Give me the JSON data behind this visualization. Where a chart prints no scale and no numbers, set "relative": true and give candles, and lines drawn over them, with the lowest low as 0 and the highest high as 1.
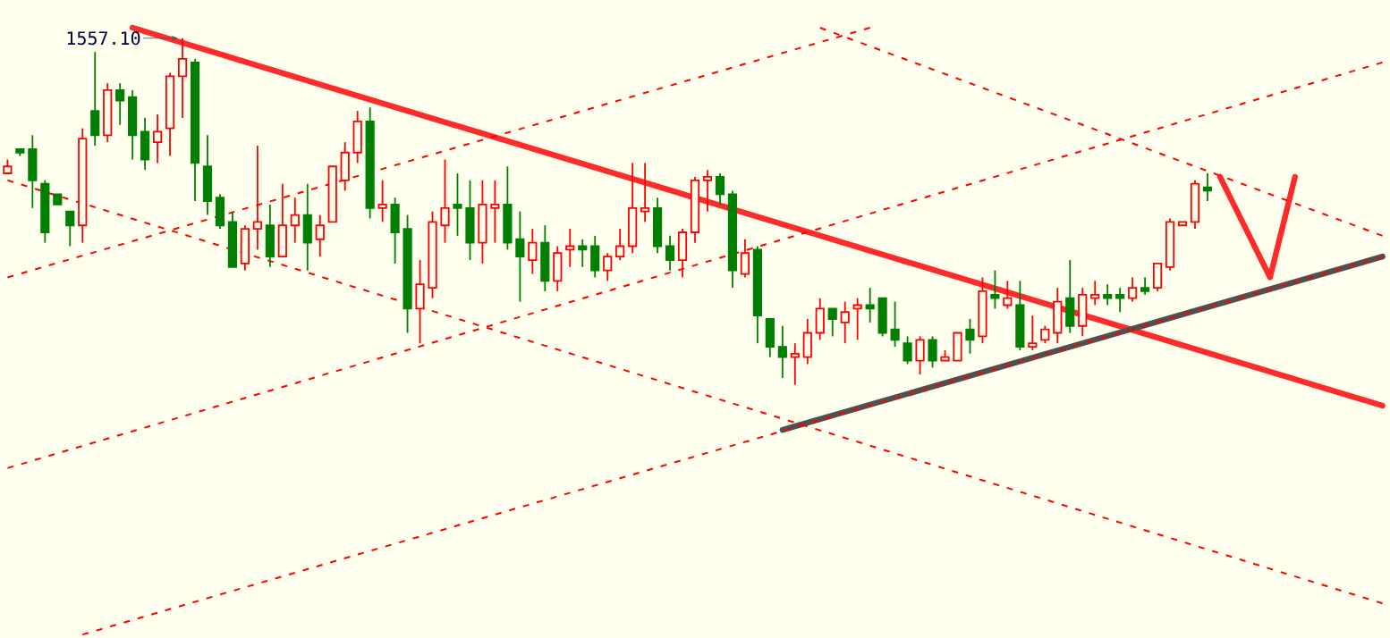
{
  "chart_data": {
    "type": "candlestick",
    "relative": true,
    "categories": [
      null,
      null,
      null,
      null,
      null,
      null,
      null,
      null,
      null,
      null,
      null,
      null,
      null,
      null,
      null,
      null,
      null,
      null,
      null,
      null,
      null,
      null,
      null,
      null,
      null,
      null,
      null,
      null,
      null,
      null,
      null,
      null,
      null,
      null,
      null,
      null,
      null,
      null,
      null,
      null,
      null,
      null,
      null,
      null,
      null,
      null,
      null,
      null,
      null,
      null,
      null,
      null,
      null,
      null,
      null,
      null,
      null,
      null,
      null,
      null,
      null,
      null,
      null,
      null,
      null,
      null,
      null,
      null,
      null,
      null,
      null,
      null,
      null,
      null,
      null,
      null,
      null,
      null,
      null,
      null,
      null,
      null,
      null,
      null,
      null,
      null,
      null,
      null,
      null,
      null,
      null,
      null,
      null,
      null,
      null,
      null,
      null,
      null,
      null,
      null,
      null,
      null,
      null,
      null,
      null,
      null,
      null,
      null,
      null,
      null,
      null
    ],
    "ohlc": [
      [
        0.61,
        0.65,
        0.61,
        0.63
      ],
      [
        0.68,
        0.68,
        0.66,
        0.67
      ],
      [
        0.68,
        0.72,
        0.51,
        0.59
      ],
      [
        0.58,
        0.59,
        0.41,
        0.44
      ],
      [
        0.55,
        0.55,
        0.52,
        0.52
      ],
      [
        0.5,
        0.5,
        0.4,
        0.46
      ],
      [
        0.46,
        0.74,
        0.41,
        0.71
      ],
      [
        0.79,
        0.96,
        0.69,
        0.72
      ],
      [
        0.72,
        0.87,
        0.7,
        0.85
      ],
      [
        0.85,
        0.87,
        0.75,
        0.82
      ],
      [
        0.83,
        0.85,
        0.65,
        0.72
      ],
      [
        0.73,
        0.77,
        0.62,
        0.65
      ],
      [
        0.7,
        0.78,
        0.64,
        0.73
      ],
      [
        0.74,
        0.9,
        0.66,
        0.89
      ],
      [
        0.89,
        1,
        0.77,
        0.94
      ],
      [
        0.93,
        0.94,
        0.53,
        0.64
      ],
      [
        0.63,
        0.72,
        0.49,
        0.53
      ],
      [
        0.54,
        0.55,
        0.45,
        0.46
      ],
      [
        0.47,
        0.5,
        0.34,
        0.34
      ],
      [
        0.35,
        0.46,
        0.33,
        0.45
      ],
      [
        0.45,
        0.69,
        0.39,
        0.47
      ],
      [
        0.46,
        0.52,
        0.34,
        0.37
      ],
      [
        0.37,
        0.58,
        0.37,
        0.46
      ],
      [
        0.46,
        0.54,
        0.41,
        0.49
      ],
      [
        0.49,
        0.58,
        0.33,
        0.41
      ],
      [
        0.42,
        0.49,
        0.37,
        0.46
      ],
      [
        0.47,
        0.63,
        0.47,
        0.63
      ],
      [
        0.59,
        0.7,
        0.56,
        0.67
      ],
      [
        0.67,
        0.79,
        0.64,
        0.76
      ],
      [
        0.76,
        0.8,
        0.48,
        0.51
      ],
      [
        0.51,
        0.59,
        0.47,
        0.52
      ],
      [
        0.52,
        0.54,
        0.35,
        0.44
      ],
      [
        0.45,
        0.49,
        0.15,
        0.22
      ],
      [
        0.22,
        0.36,
        0.12,
        0.29
      ],
      [
        0.28,
        0.5,
        0.25,
        0.47
      ],
      [
        0.46,
        0.65,
        0.41,
        0.51
      ],
      [
        0.52,
        0.61,
        0.43,
        0.51
      ],
      [
        0.51,
        0.59,
        0.36,
        0.41
      ],
      [
        0.41,
        0.59,
        0.35,
        0.52
      ],
      [
        0.51,
        0.59,
        0.41,
        0.52
      ],
      [
        0.52,
        0.63,
        0.39,
        0.41
      ],
      [
        0.42,
        0.5,
        0.24,
        0.37
      ],
      [
        0.36,
        0.45,
        0.32,
        0.41
      ],
      [
        0.41,
        0.46,
        0.27,
        0.3
      ],
      [
        0.3,
        0.4,
        0.27,
        0.38
      ],
      [
        0.39,
        0.45,
        0.34,
        0.4
      ],
      [
        0.4,
        0.42,
        0.34,
        0.39
      ],
      [
        0.4,
        0.43,
        0.31,
        0.33
      ],
      [
        0.33,
        0.38,
        0.3,
        0.37
      ],
      [
        0.37,
        0.45,
        0.36,
        0.4
      ],
      [
        0.4,
        0.64,
        0.38,
        0.51
      ],
      [
        0.5,
        0.64,
        0.47,
        0.51
      ],
      [
        0.51,
        0.54,
        0.38,
        0.4
      ],
      [
        0.4,
        0.43,
        0.33,
        0.36
      ],
      [
        0.36,
        0.45,
        0.31,
        0.44
      ],
      [
        0.44,
        0.6,
        0.41,
        0.59
      ],
      [
        0.59,
        0.62,
        0.5,
        0.6
      ],
      [
        0.6,
        0.61,
        0.52,
        0.55
      ],
      [
        0.55,
        0.56,
        0.28,
        0.33
      ],
      [
        0.32,
        0.42,
        0.31,
        0.38
      ],
      [
        0.39,
        0.4,
        0.12,
        0.2
      ],
      [
        0.19,
        0.19,
        0.08,
        0.11
      ],
      [
        0.11,
        0.17,
        0.02,
        0.08
      ],
      [
        0.08,
        0.12,
        0,
        0.09
      ],
      [
        0.08,
        0.19,
        0.06,
        0.15
      ],
      [
        0.15,
        0.25,
        0.13,
        0.22
      ],
      [
        0.22,
        0.22,
        0.14,
        0.19
      ],
      [
        0.18,
        0.24,
        0.12,
        0.21
      ],
      [
        0.22,
        0.25,
        0.13,
        0.23
      ],
      [
        0.23,
        0.28,
        0.18,
        0.22
      ],
      [
        0.25,
        0.25,
        0.14,
        0.15
      ],
      [
        0.16,
        0.24,
        0.11,
        0.13
      ],
      [
        0.12,
        0.14,
        0.06,
        0.07
      ],
      [
        0.07,
        0.14,
        0.03,
        0.13
      ],
      [
        0.13,
        0.14,
        0.05,
        0.07
      ],
      [
        0.07,
        0.1,
        0.07,
        0.08
      ],
      [
        0.07,
        0.15,
        0.07,
        0.15
      ],
      [
        0.16,
        0.19,
        0.09,
        0.13
      ],
      [
        0.14,
        0.31,
        0.12,
        0.27
      ],
      [
        0.26,
        0.33,
        0.22,
        0.25
      ],
      [
        0.23,
        0.3,
        0.22,
        0.25
      ],
      [
        0.23,
        0.3,
        0.1,
        0.11
      ],
      [
        0.11,
        0.2,
        0.1,
        0.12
      ],
      [
        0.13,
        0.17,
        0.12,
        0.16
      ],
      [
        0.15,
        0.28,
        0.12,
        0.24
      ],
      [
        0.25,
        0.36,
        0.15,
        0.17
      ],
      [
        0.17,
        0.28,
        0.14,
        0.26
      ],
      [
        0.25,
        0.3,
        0.23,
        0.26
      ],
      [
        0.26,
        0.29,
        0.23,
        0.25
      ],
      [
        0.26,
        0.28,
        0.21,
        0.25
      ],
      [
        0.25,
        0.31,
        0.24,
        0.28
      ],
      [
        0.28,
        0.31,
        0.26,
        0.27
      ],
      [
        0.28,
        0.35,
        0.27,
        0.35
      ],
      [
        0.34,
        0.48,
        0.33,
        0.47
      ],
      [
        0.46,
        0.47,
        0.46,
        0.47
      ],
      [
        0.47,
        0.59,
        0.45,
        0.58
      ],
      [
        0.57,
        0.61,
        0.53,
        0.56
      ],
      null,
      null,
      null,
      null,
      null,
      null,
      null,
      null,
      null,
      null,
      null,
      null,
      null,
      null
    ],
    "annotations": [
      "1557.10"
    ],
    "series": [
      {
        "type": "line",
        "color": "#ff0000",
        "line_style": "dashed",
        "values": [
          0.31,
          null,
          null,
          null,
          null,
          null,
          null,
          null,
          null,
          null,
          null,
          null,
          null,
          null,
          null,
          null,
          null,
          null,
          null,
          null,
          null,
          null,
          null,
          null,
          null,
          null,
          null,
          null,
          null,
          null,
          null,
          null,
          null,
          null,
          null,
          null,
          null,
          null,
          null,
          null,
          null,
          null,
          null,
          null,
          null,
          null,
          null,
          null,
          null,
          null,
          null,
          null,
          null,
          null,
          null,
          null,
          null,
          null,
          null,
          null,
          null,
          null,
          null,
          null,
          null,
          null,
          null,
          null,
          null,
          1.03,
          null,
          null,
          null,
          null,
          null,
          null,
          null,
          null,
          null,
          null,
          null,
          null,
          null,
          null,
          null,
          null,
          null,
          null,
          null,
          null,
          null,
          null,
          null,
          null,
          null,
          null,
          null,
          null,
          null,
          null,
          null,
          null,
          null,
          null,
          null,
          null,
          null,
          null,
          null,
          null,
          null
        ]
      },
      {
        "type": "line",
        "color": "#ff0000",
        "line_style": "dashed",
        "values": [
          -0.24,
          null,
          null,
          null,
          null,
          null,
          null,
          null,
          null,
          null,
          null,
          null,
          null,
          null,
          null,
          null,
          null,
          null,
          null,
          null,
          null,
          null,
          null,
          null,
          null,
          null,
          null,
          null,
          null,
          null,
          null,
          null,
          null,
          null,
          null,
          null,
          null,
          null,
          null,
          null,
          null,
          null,
          null,
          null,
          null,
          null,
          null,
          null,
          null,
          null,
          null,
          null,
          null,
          null,
          null,
          null,
          null,
          null,
          null,
          null,
          null,
          null,
          null,
          null,
          null,
          null,
          null,
          null,
          null,
          null,
          null,
          null,
          null,
          null,
          null,
          null,
          null,
          null,
          null,
          null,
          null,
          null,
          null,
          null,
          null,
          null,
          null,
          null,
          null,
          null,
          null,
          null,
          null,
          null,
          null,
          null,
          null,
          null,
          null,
          null,
          null,
          null,
          null,
          null,
          null,
          null,
          null,
          null,
          null,
          null,
          0.93
        ]
      },
      {
        "type": "line",
        "color": "#ff0000",
        "line_style": "dashed",
        "values": [
          null,
          null,
          null,
          null,
          null,
          null,
          -0.72,
          null,
          null,
          null,
          null,
          null,
          null,
          null,
          null,
          null,
          null,
          null,
          null,
          null,
          null,
          null,
          null,
          null,
          null,
          null,
          null,
          null,
          null,
          null,
          null,
          null,
          null,
          null,
          null,
          null,
          null,
          null,
          null,
          null,
          null,
          null,
          null,
          null,
          null,
          null,
          null,
          null,
          null,
          null,
          null,
          null,
          null,
          null,
          null,
          null,
          null,
          null,
          null,
          null,
          null,
          null,
          null,
          null,
          null,
          null,
          null,
          null,
          null,
          null,
          null,
          null,
          null,
          null,
          null,
          null,
          null,
          null,
          null,
          null,
          null,
          null,
          null,
          null,
          null,
          null,
          null,
          null,
          null,
          null,
          null,
          null,
          null,
          null,
          null,
          null,
          null,
          null,
          null,
          null,
          null,
          null,
          null,
          null,
          null,
          null,
          null,
          null,
          null,
          null,
          0.37
        ]
      },
      {
        "type": "line",
        "color": "#ff0000",
        "line_style": "dashed",
        "values": [
          0.59,
          null,
          null,
          null,
          null,
          null,
          null,
          null,
          null,
          null,
          null,
          null,
          null,
          null,
          null,
          null,
          null,
          null,
          null,
          null,
          null,
          null,
          null,
          null,
          null,
          null,
          null,
          null,
          null,
          null,
          null,
          null,
          null,
          null,
          null,
          null,
          null,
          null,
          null,
          null,
          null,
          null,
          null,
          null,
          null,
          null,
          null,
          null,
          null,
          null,
          null,
          null,
          null,
          null,
          null,
          null,
          null,
          null,
          null,
          null,
          null,
          null,
          null,
          null,
          null,
          null,
          null,
          null,
          null,
          null,
          null,
          null,
          null,
          null,
          null,
          null,
          null,
          null,
          null,
          null,
          null,
          null,
          null,
          null,
          null,
          null,
          null,
          null,
          null,
          null,
          null,
          null,
          null,
          null,
          null,
          null,
          null,
          null,
          null,
          null,
          null,
          null,
          null,
          null,
          null,
          null,
          null,
          null,
          null,
          null,
          -0.63
        ]
      },
      {
        "type": "line",
        "color": "#ff0000",
        "line_style": "dashed",
        "values": [
          null,
          null,
          null,
          null,
          null,
          null,
          null,
          null,
          null,
          null,
          null,
          null,
          null,
          null,
          null,
          null,
          null,
          null,
          null,
          null,
          null,
          null,
          null,
          null,
          null,
          null,
          null,
          null,
          null,
          null,
          null,
          null,
          null,
          null,
          null,
          null,
          null,
          null,
          null,
          null,
          null,
          null,
          null,
          null,
          null,
          null,
          null,
          null,
          null,
          null,
          null,
          null,
          null,
          null,
          null,
          null,
          null,
          null,
          null,
          null,
          null,
          null,
          null,
          null,
          null,
          1.03,
          null,
          null,
          null,
          null,
          null,
          null,
          null,
          null,
          null,
          null,
          null,
          null,
          null,
          null,
          null,
          null,
          null,
          null,
          null,
          null,
          null,
          null,
          null,
          null,
          null,
          null,
          null,
          null,
          null,
          null,
          null,
          null,
          null,
          null,
          null,
          null,
          null,
          null,
          null,
          null,
          null,
          null,
          null,
          null,
          0.43
        ]
      },
      {
        "type": "line",
        "color": "#ff2a2a",
        "line_style": "solid",
        "values": [
          null,
          null,
          null,
          null,
          null,
          null,
          null,
          null,
          null,
          null,
          1.03,
          null,
          null,
          null,
          null,
          null,
          null,
          null,
          null,
          null,
          null,
          null,
          null,
          null,
          null,
          null,
          null,
          null,
          null,
          null,
          null,
          null,
          null,
          null,
          null,
          null,
          null,
          null,
          null,
          null,
          null,
          null,
          null,
          null,
          null,
          null,
          null,
          null,
          null,
          null,
          null,
          null,
          null,
          null,
          null,
          null,
          null,
          null,
          null,
          null,
          null,
          null,
          null,
          null,
          null,
          null,
          null,
          null,
          null,
          null,
          null,
          null,
          null,
          null,
          null,
          null,
          null,
          null,
          null,
          null,
          null,
          null,
          null,
          null,
          null,
          null,
          null,
          null,
          null,
          null,
          null,
          null,
          null,
          null,
          null,
          null,
          null,
          null,
          null,
          null,
          null,
          null,
          null,
          null,
          null,
          null,
          null,
          null,
          null,
          null,
          -0.06
        ]
      },
      {
        "type": "line",
        "color": "#505050",
        "line_style": "solid",
        "values": [
          null,
          null,
          null,
          null,
          null,
          null,
          null,
          null,
          null,
          null,
          null,
          null,
          null,
          null,
          null,
          null,
          null,
          null,
          null,
          null,
          null,
          null,
          null,
          null,
          null,
          null,
          null,
          null,
          null,
          null,
          null,
          null,
          null,
          null,
          null,
          null,
          null,
          null,
          null,
          null,
          null,
          null,
          null,
          null,
          null,
          null,
          null,
          null,
          null,
          null,
          null,
          null,
          null,
          null,
          null,
          null,
          null,
          null,
          null,
          null,
          null,
          null,
          -0.13,
          null,
          null,
          null,
          null,
          null,
          null,
          null,
          null,
          null,
          null,
          null,
          null,
          null,
          null,
          null,
          null,
          null,
          null,
          null,
          null,
          null,
          null,
          null,
          null,
          null,
          null,
          null,
          null,
          null,
          null,
          null,
          null,
          null,
          null,
          null,
          null,
          null,
          null,
          null,
          null,
          null,
          null,
          null,
          null,
          null,
          null,
          null,
          0.37
        ]
      },
      {
        "type": "line",
        "color": "#ff2a2a",
        "line_style": "solid",
        "values": [
          null,
          null,
          null,
          null,
          null,
          null,
          null,
          null,
          null,
          null,
          null,
          null,
          null,
          null,
          null,
          null,
          null,
          null,
          null,
          null,
          null,
          null,
          null,
          null,
          null,
          null,
          null,
          null,
          null,
          null,
          null,
          null,
          null,
          null,
          null,
          null,
          null,
          null,
          null,
          null,
          null,
          null,
          null,
          null,
          null,
          null,
          null,
          null,
          null,
          null,
          null,
          null,
          null,
          null,
          null,
          null,
          null,
          null,
          null,
          null,
          null,
          null,
          null,
          null,
          null,
          null,
          null,
          null,
          null,
          null,
          null,
          null,
          null,
          null,
          null,
          null,
          null,
          null,
          null,
          null,
          null,
          null,
          null,
          null,
          null,
          null,
          null,
          null,
          null,
          null,
          null,
          null,
          null,
          null,
          null,
          null,
          null,
          0.6,
          null,
          null,
          null,
          0.31,
          null,
          0.6,
          null,
          null,
          null,
          null,
          null,
          null,
          null
        ]
      }
    ]
  }
}
